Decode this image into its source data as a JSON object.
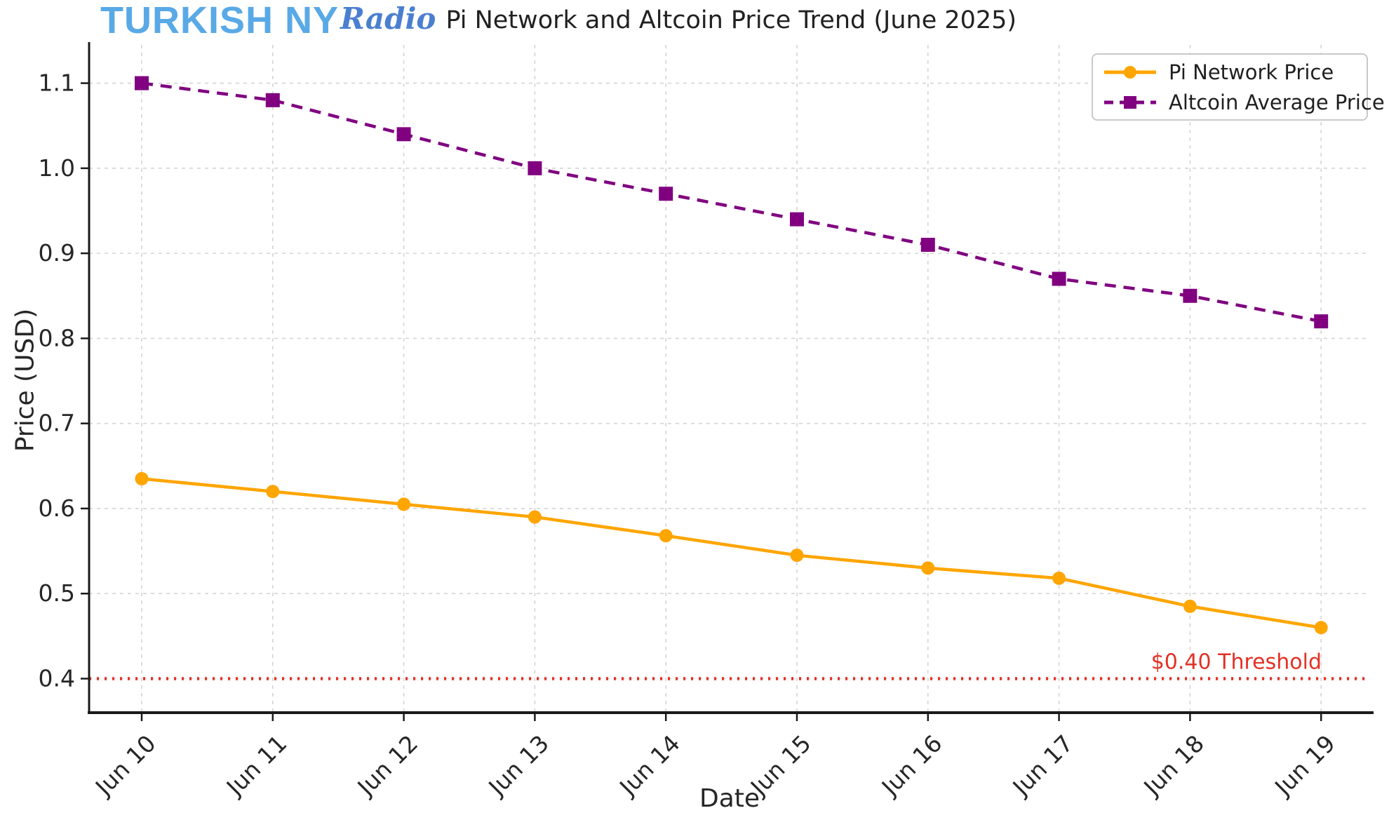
{
  "header": {
    "logo": {
      "primary": "TURKISH NY",
      "script": "Radio",
      "primary_color": "#59A9E6",
      "script_color": "#4A7FD0"
    }
  },
  "chart_data": {
    "type": "line",
    "title": "Pi Network and Altcoin Price Trend (June 2025)",
    "xlabel": "Date",
    "ylabel": "Price (USD)",
    "categories": [
      "Jun 10",
      "Jun 11",
      "Jun 12",
      "Jun 13",
      "Jun 14",
      "Jun 15",
      "Jun 16",
      "Jun 17",
      "Jun 18",
      "Jun 19"
    ],
    "series": [
      {
        "name": "Pi Network Price",
        "color": "#FFA500",
        "line_style": "solid",
        "marker": "circle",
        "values": [
          0.635,
          0.62,
          0.605,
          0.59,
          0.568,
          0.545,
          0.53,
          0.518,
          0.485,
          0.46
        ]
      },
      {
        "name": "Altcoin Average Price",
        "color": "#800080",
        "line_style": "dashed",
        "marker": "square",
        "values": [
          1.1,
          1.08,
          1.04,
          1.0,
          0.97,
          0.94,
          0.91,
          0.87,
          0.85,
          0.82
        ]
      }
    ],
    "threshold": {
      "value": 0.4,
      "label": "$0.40 Threshold",
      "color": "#E33126",
      "line_style": "dotted"
    },
    "yticks": [
      0.4,
      0.5,
      0.6,
      0.7,
      0.8,
      0.9,
      1.0,
      1.1
    ],
    "ylim": [
      0.36,
      1.145
    ],
    "grid": true,
    "legend_position": "upper right",
    "axis_color": "#1a1a1a",
    "grid_color": "#d4d4d4"
  }
}
